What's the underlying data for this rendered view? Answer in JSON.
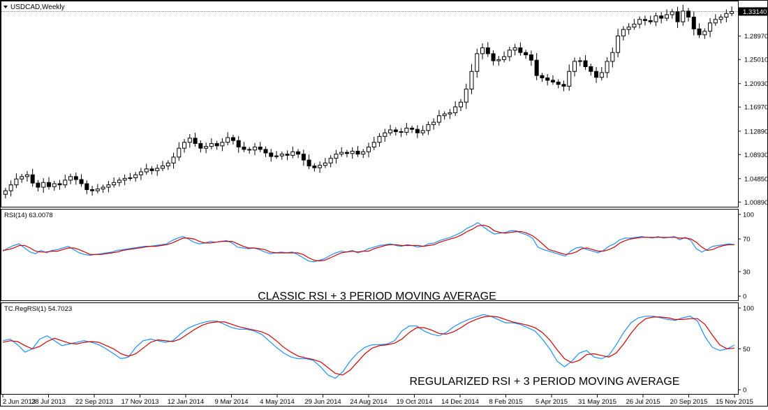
{
  "main_chart": {
    "label": "USDCAD,Weekly",
    "current_price_label": "1.33140",
    "price_axis": [
      "1.28970",
      "1.25010",
      "1.20930",
      "1.16970",
      "1.12890",
      "1.08930",
      "1.04850",
      "1.00890"
    ],
    "price_axis_values": [
      1.2897,
      1.2501,
      1.2093,
      1.1697,
      1.1289,
      1.0893,
      1.0485,
      1.0089
    ],
    "price_range": [
      1.0045,
      1.3414
    ],
    "current_price": 1.3314,
    "bar_color_up": "#000000",
    "bar_color_down": "#000000"
  },
  "rsi_panel": {
    "label": "RSI(14) 63.0078",
    "axis": [
      "100",
      "70",
      "30",
      "0"
    ],
    "axis_values": [
      100,
      70,
      30,
      0
    ],
    "caption": "CLASSIC RSI + 3 PERIOD MOVING AVERAGE",
    "rsi_color": "#1E90FF",
    "ma_color": "#D00000"
  },
  "regrsi_panel": {
    "label": "TC.RegRSI(1) 54.7023",
    "axis": [
      "100",
      "50",
      "0"
    ],
    "axis_values": [
      100,
      50,
      0
    ],
    "caption": "REGULARIZED RSI + 3 PERIOD MOVING AVERAGE",
    "rsi_color": "#1E90FF",
    "ma_color": "#D00000"
  },
  "time_axis": [
    "2 Jun 2013",
    "28 Jul 2013",
    "22 Sep 2013",
    "17 Nov 2013",
    "12 Jan 2014",
    "9 Mar 2014",
    "4 May 2014",
    "29 Jun 2014",
    "24 Aug 2014",
    "19 Oct 2014",
    "14 Dec 2014",
    "8 Feb 2015",
    "5 Apr 2015",
    "31 May 2015",
    "26 Jul 2015",
    "20 Sep 2015",
    "15 Nov 2015"
  ],
  "chart_data": [
    {
      "type": "candlestick",
      "title": "USDCAD,Weekly",
      "y_range": [
        1.0045,
        1.3414
      ],
      "close_series": [
        1.028,
        1.038,
        1.048,
        1.052,
        1.055,
        1.041,
        1.034,
        1.042,
        1.035,
        1.04,
        1.038,
        1.046,
        1.052,
        1.047,
        1.04,
        1.03,
        1.028,
        1.031,
        1.034,
        1.038,
        1.042,
        1.046,
        1.049,
        1.05,
        1.055,
        1.06,
        1.065,
        1.062,
        1.066,
        1.07,
        1.075,
        1.085,
        1.1,
        1.11,
        1.117,
        1.108,
        1.1,
        1.103,
        1.108,
        1.104,
        1.11,
        1.118,
        1.113,
        1.102,
        1.098,
        1.097,
        1.102,
        1.098,
        1.092,
        1.086,
        1.087,
        1.09,
        1.088,
        1.094,
        1.09,
        1.08,
        1.07,
        1.067,
        1.071,
        1.075,
        1.083,
        1.09,
        1.093,
        1.091,
        1.095,
        1.09,
        1.094,
        1.102,
        1.11,
        1.12,
        1.126,
        1.131,
        1.128,
        1.127,
        1.134,
        1.132,
        1.126,
        1.13,
        1.14,
        1.144,
        1.155,
        1.158,
        1.16,
        1.17,
        1.178,
        1.2,
        1.23,
        1.26,
        1.27,
        1.26,
        1.248,
        1.25,
        1.255,
        1.266,
        1.27,
        1.262,
        1.258,
        1.249,
        1.223,
        1.219,
        1.215,
        1.212,
        1.208,
        1.205,
        1.23,
        1.247,
        1.248,
        1.238,
        1.23,
        1.22,
        1.228,
        1.247,
        1.262,
        1.29,
        1.301,
        1.305,
        1.31,
        1.318,
        1.316,
        1.314,
        1.324,
        1.32,
        1.326,
        1.331,
        1.314,
        1.332,
        1.322,
        1.302,
        1.292,
        1.298,
        1.312,
        1.318,
        1.322,
        1.328,
        1.3314
      ],
      "current": 1.3314
    },
    {
      "type": "line",
      "title": "RSI(14) 63.0078",
      "y_range": [
        0,
        100
      ],
      "series": [
        {
          "name": "RSI(14)",
          "values": [
            55,
            59,
            62,
            64,
            59,
            54,
            52,
            56,
            53,
            56,
            57,
            59,
            61,
            57,
            53,
            51,
            50,
            51,
            52,
            53,
            54,
            56,
            57,
            58,
            59,
            60,
            61,
            61,
            62,
            63,
            64,
            68,
            71,
            73,
            70,
            66,
            64,
            65,
            67,
            66,
            67,
            68,
            65,
            60,
            59,
            58,
            59,
            57,
            54,
            52,
            53,
            54,
            53,
            54,
            51,
            47,
            43,
            42,
            44,
            46,
            50,
            53,
            55,
            54,
            56,
            53,
            55,
            58,
            60,
            62,
            63,
            64,
            62,
            61,
            63,
            62,
            60,
            61,
            64,
            65,
            68,
            70,
            72,
            75,
            78,
            83,
            86,
            90,
            85,
            80,
            76,
            77,
            78,
            80,
            80,
            77,
            75,
            71,
            60,
            57,
            55,
            53,
            51,
            49,
            55,
            59,
            60,
            57,
            55,
            53,
            56,
            61,
            64,
            69,
            71,
            71,
            72,
            73,
            72,
            71,
            73,
            71,
            72,
            73,
            69,
            72,
            68,
            58,
            54,
            57,
            61,
            62,
            63,
            64,
            63.0
          ]
        },
        {
          "name": "MA(3)",
          "values": [
            56,
            57,
            59,
            62,
            62,
            59,
            55,
            54,
            54,
            55,
            55,
            57,
            59,
            59,
            57,
            54,
            51,
            51,
            51,
            52,
            53,
            54,
            56,
            57,
            58,
            59,
            60,
            61,
            61,
            62,
            63,
            65,
            68,
            71,
            71,
            70,
            67,
            65,
            65,
            66,
            67,
            67,
            67,
            64,
            61,
            59,
            59,
            58,
            57,
            54,
            53,
            53,
            53,
            53,
            53,
            51,
            47,
            44,
            43,
            44,
            47,
            50,
            53,
            54,
            55,
            54,
            55,
            55,
            58,
            60,
            62,
            63,
            63,
            62,
            62,
            62,
            62,
            61,
            62,
            63,
            66,
            68,
            70,
            72,
            75,
            79,
            82,
            86,
            87,
            85,
            80,
            78,
            77,
            78,
            79,
            79,
            77,
            74,
            69,
            63,
            57,
            55,
            53,
            51,
            52,
            54,
            58,
            59,
            57,
            55,
            55,
            57,
            60,
            65,
            68,
            70,
            71,
            72,
            72,
            72,
            72,
            72,
            72,
            72,
            71,
            71,
            70,
            66,
            60,
            56,
            57,
            60,
            62,
            63,
            63
          ]
        }
      ]
    },
    {
      "type": "line",
      "title": "TC.RegRSI(1) 54.7023",
      "y_range": [
        0,
        100
      ],
      "series": [
        {
          "name": "RegRSI(1)",
          "values": [
            60,
            62,
            55,
            46,
            50,
            62,
            66,
            60,
            54,
            56,
            58,
            60,
            58,
            55,
            50,
            44,
            38,
            40,
            52,
            60,
            62,
            60,
            58,
            60,
            68,
            75,
            79,
            82,
            84,
            84,
            80,
            76,
            74,
            74,
            72,
            68,
            60,
            52,
            45,
            40,
            38,
            38,
            36,
            28,
            18,
            14,
            22,
            35,
            45,
            52,
            55,
            55,
            56,
            60,
            72,
            78,
            78,
            72,
            68,
            66,
            70,
            77,
            82,
            86,
            89,
            92,
            90,
            86,
            82,
            82,
            80,
            76,
            72,
            62,
            50,
            35,
            28,
            35,
            45,
            48,
            40,
            38,
            42,
            55,
            70,
            82,
            88,
            90,
            90,
            88,
            86,
            85,
            88,
            90,
            84,
            65,
            52,
            48,
            50,
            54.7
          ]
        },
        {
          "name": "MA(3)",
          "values": [
            58,
            60,
            59,
            54,
            50,
            53,
            59,
            63,
            60,
            57,
            56,
            58,
            59,
            58,
            54,
            50,
            44,
            41,
            44,
            51,
            58,
            61,
            60,
            59,
            62,
            68,
            74,
            79,
            82,
            83,
            83,
            80,
            77,
            75,
            73,
            71,
            67,
            60,
            52,
            46,
            41,
            39,
            37,
            34,
            27,
            20,
            18,
            24,
            34,
            44,
            51,
            54,
            55,
            57,
            62,
            70,
            76,
            76,
            73,
            69,
            68,
            71,
            76,
            82,
            86,
            89,
            90,
            89,
            86,
            83,
            81,
            79,
            76,
            70,
            61,
            49,
            38,
            33,
            36,
            43,
            44,
            42,
            40,
            45,
            56,
            69,
            80,
            87,
            89,
            89,
            88,
            86,
            86,
            87,
            87,
            80,
            67,
            55,
            50,
            51
          ]
        }
      ]
    }
  ]
}
